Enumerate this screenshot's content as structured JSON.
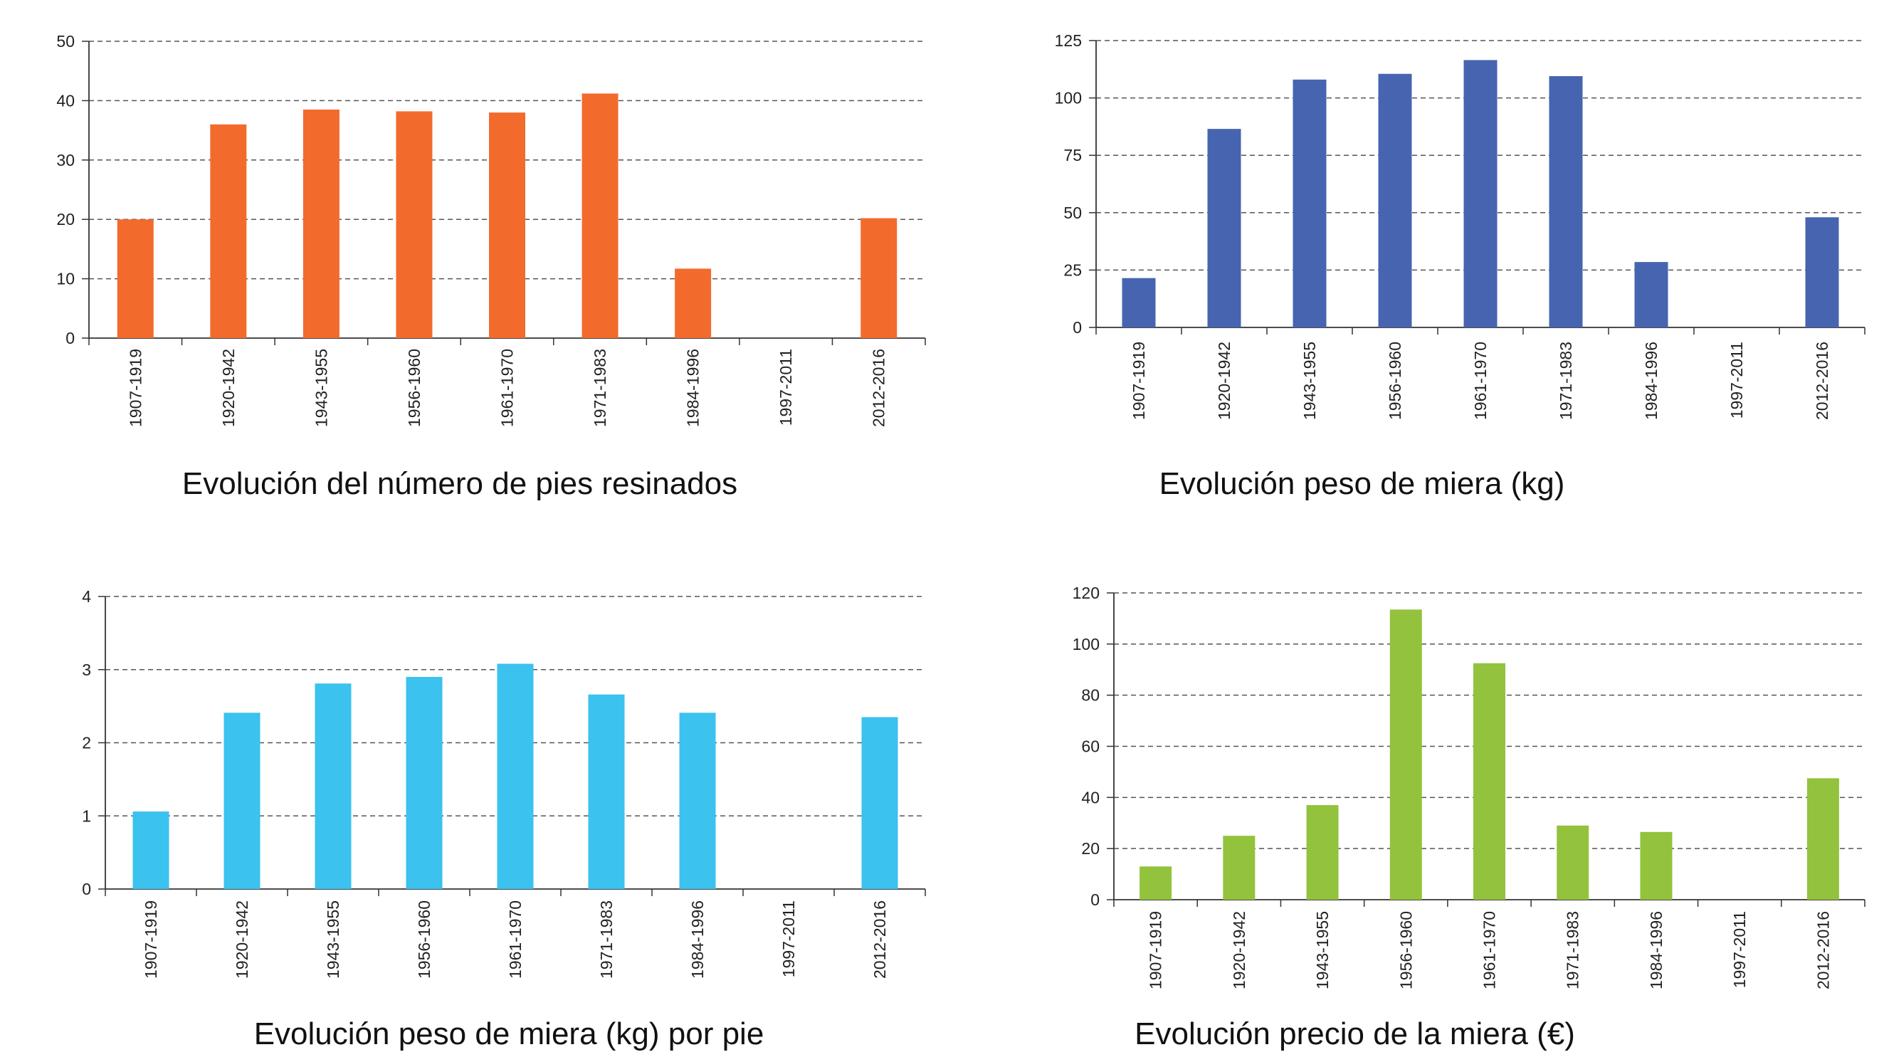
{
  "chart_data": [
    {
      "type": "bar",
      "title": "Evolución del número de pies resinados",
      "categories": [
        "1907-1919",
        "1920-1942",
        "1943-1955",
        "1956-1960",
        "1961-1970",
        "1971-1983",
        "1984-1996",
        "1997-2011",
        "2012-2016"
      ],
      "values": [
        20,
        36,
        38.5,
        38.2,
        38,
        41.2,
        11.7,
        0,
        20.2
      ],
      "ylim": [
        0,
        50
      ],
      "yticks": [
        0,
        10,
        20,
        30,
        40,
        50
      ],
      "color": "#f26b2d",
      "grid": true,
      "legend": "none"
    },
    {
      "type": "bar",
      "title": "Evolución peso de miera (kg)",
      "categories": [
        "1907-1919",
        "1920-1942",
        "1943-1955",
        "1956-1960",
        "1961-1970",
        "1971-1983",
        "1984-1996",
        "1997-2011",
        "2012-2016"
      ],
      "values": [
        21.5,
        86.5,
        108,
        110.5,
        116.5,
        109.5,
        28.5,
        0,
        48
      ],
      "ylim": [
        0,
        125
      ],
      "yticks": [
        0,
        25,
        50,
        75,
        100,
        125
      ],
      "color": "#4664b0",
      "grid": true,
      "legend": "none"
    },
    {
      "type": "bar",
      "title": "Evolución peso de miera (kg) por pie",
      "categories": [
        "1907-1919",
        "1920-1942",
        "1943-1955",
        "1956-1960",
        "1961-1970",
        "1971-1983",
        "1984-1996",
        "1997-2011",
        "2012-2016"
      ],
      "values": [
        1.06,
        2.41,
        2.81,
        2.9,
        3.08,
        2.66,
        2.41,
        0,
        2.35
      ],
      "ylim": [
        0,
        4
      ],
      "yticks": [
        0,
        1,
        2,
        3,
        4
      ],
      "color": "#3bc2ef",
      "grid": true,
      "legend": "none"
    },
    {
      "type": "bar",
      "title": "Evolución precio de la miera (€)",
      "categories": [
        "1907-1919",
        "1920-1942",
        "1943-1955",
        "1956-1960",
        "1961-1970",
        "1971-1983",
        "1984-1996",
        "1997-2011",
        "2012-2016"
      ],
      "values": [
        13,
        25,
        37,
        113.5,
        92.5,
        29,
        26.5,
        0,
        47.5
      ],
      "ylim": [
        0,
        120
      ],
      "yticks": [
        0,
        20,
        40,
        60,
        80,
        100,
        120
      ],
      "color": "#93c23d",
      "grid": true,
      "legend": "none"
    }
  ]
}
